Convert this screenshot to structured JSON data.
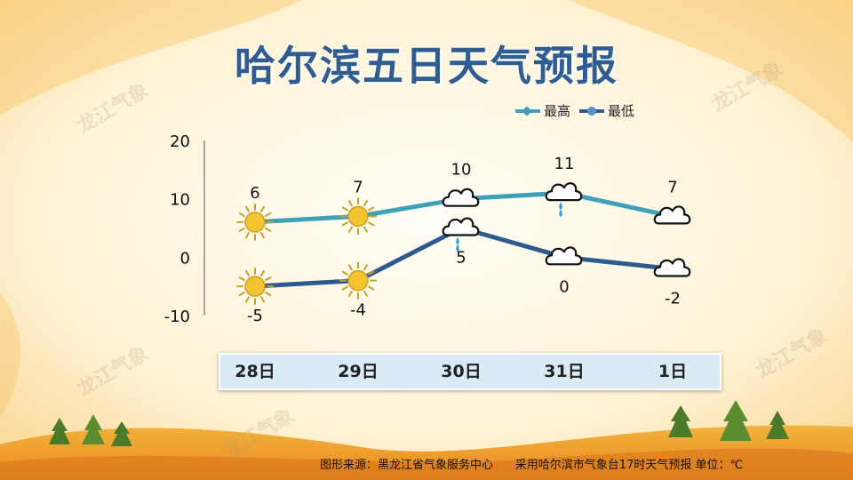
{
  "title": "哈尔滨五日天气预报",
  "watermark": "龙江气象",
  "footer": "图形来源：黑龙江省气象服务中心      采用哈尔滨市气象台17时天气预报 单位：℃",
  "colors": {
    "high": "#3fa1b8",
    "low": "#2e5b8e",
    "title": "#2f5d8f",
    "sun": "#f4c430",
    "rain": "#2b9fd6"
  },
  "chart_data": {
    "type": "line",
    "categories": [
      "28日",
      "29日",
      "30日",
      "31日",
      "1日"
    ],
    "ylim": [
      -10,
      20
    ],
    "yticks": [
      "20",
      "10",
      "0",
      "-10"
    ],
    "series": [
      {
        "name": "最高",
        "values": [
          6,
          7,
          10,
          11,
          7
        ],
        "labels": [
          "6",
          "7",
          "10",
          "11",
          "7"
        ],
        "weather_icons": [
          "sun-icon",
          "sun-icon",
          "cloud-icon",
          "cloud-rain-icon",
          "cloud-icon"
        ]
      },
      {
        "name": "最低",
        "values": [
          -5,
          -4,
          5,
          0,
          -2
        ],
        "labels": [
          "-5",
          "-4",
          "5",
          "0",
          "-2"
        ],
        "weather_icons": [
          "sun-icon",
          "sun-icon",
          "cloud-rain-icon",
          "cloud-icon",
          "cloud-icon"
        ]
      }
    ]
  }
}
